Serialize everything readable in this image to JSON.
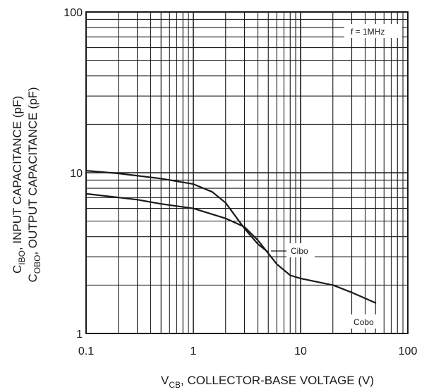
{
  "chart_data": {
    "type": "line",
    "xscale": "log",
    "yscale": "log",
    "xlim": [
      0.1,
      100
    ],
    "ylim": [
      1,
      100
    ],
    "grid": true,
    "x_ticks": [
      "0.1",
      "1",
      "10",
      "100"
    ],
    "y_ticks": [
      "1",
      "10",
      "100"
    ],
    "xlabel": {
      "v": "V",
      "sub": "CB",
      "rest": ", COLLECTOR-BASE VOLTAGE (V)"
    },
    "ylabel_line1": {
      "c": "C",
      "sub": "IBO",
      "rest": ", INPUT CAPACITANCE (pF)"
    },
    "ylabel_line2": {
      "c": "C",
      "sub": "OBO",
      "rest": ", OUTPUT CAPACITANCE (pF)"
    },
    "condition_label": "f = 1MHz",
    "series": [
      {
        "name": "Cibo",
        "x": [
          0.1,
          0.2,
          0.5,
          1.0,
          1.5,
          2.0,
          3.0,
          4.0,
          5.0
        ],
        "y": [
          10.3,
          9.9,
          9.2,
          8.5,
          7.6,
          6.5,
          4.5,
          3.6,
          3.2
        ]
      },
      {
        "name": "Cobo",
        "x": [
          0.1,
          0.3,
          0.5,
          1.0,
          2.0,
          3.0,
          4.0,
          6.0,
          8.0,
          10,
          20,
          30,
          50
        ],
        "y": [
          7.4,
          6.8,
          6.4,
          6.0,
          5.2,
          4.6,
          3.8,
          2.7,
          2.3,
          2.2,
          2.0,
          1.8,
          1.55
        ]
      }
    ],
    "colors": {
      "line": "#1a1a1a",
      "grid": "#1a1a1a",
      "background": "#ffffff"
    }
  }
}
